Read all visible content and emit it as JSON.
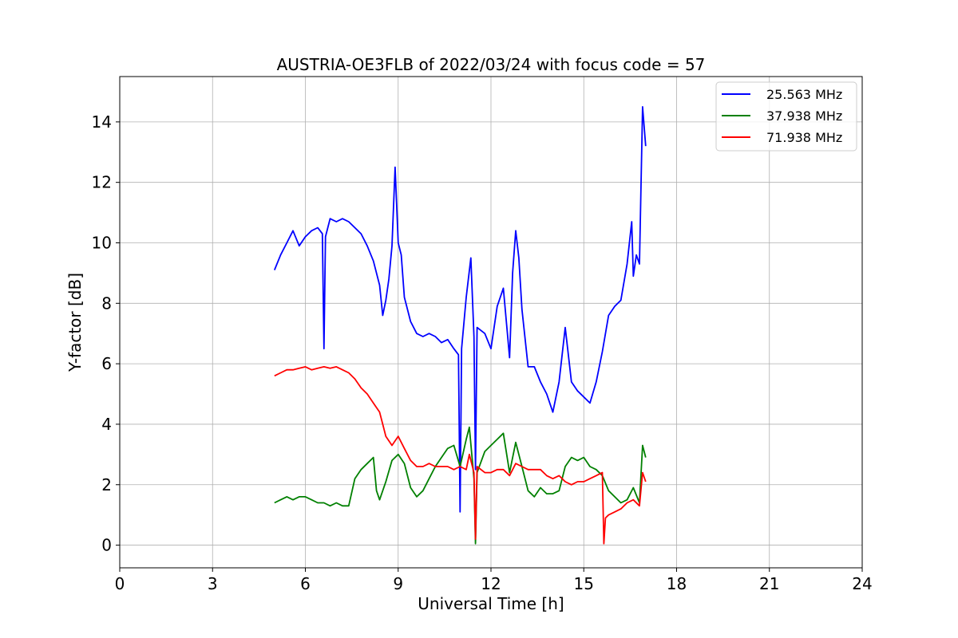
{
  "chart_data": {
    "type": "line",
    "title": "AUSTRIA-OE3FLB of 2022/03/24 with focus code = 57",
    "xlabel": "Universal Time [h]",
    "ylabel": "Y-factor [dB]",
    "xlim": [
      0,
      24
    ],
    "ylim": [
      -0.75,
      15.5
    ],
    "xticks": [
      "0",
      "3",
      "6",
      "9",
      "12",
      "15",
      "18",
      "21",
      "24"
    ],
    "yticks": [
      "0",
      "2",
      "4",
      "6",
      "8",
      "10",
      "12",
      "14"
    ],
    "grid": true,
    "legend_position": "top-right",
    "series": [
      {
        "name": "25.563 MHz",
        "color": "#0000ff",
        "x": [
          5.0,
          5.2,
          5.4,
          5.6,
          5.8,
          6.0,
          6.2,
          6.4,
          6.55,
          6.6,
          6.65,
          6.8,
          7.0,
          7.2,
          7.4,
          7.6,
          7.8,
          8.0,
          8.2,
          8.4,
          8.5,
          8.6,
          8.7,
          8.8,
          8.9,
          9.0,
          9.1,
          9.2,
          9.4,
          9.6,
          9.8,
          10.0,
          10.2,
          10.4,
          10.6,
          10.8,
          10.95,
          11.0,
          11.05,
          11.2,
          11.35,
          11.45,
          11.5,
          11.55,
          11.8,
          12.0,
          12.2,
          12.4,
          12.6,
          12.7,
          12.8,
          12.9,
          13.0,
          13.2,
          13.4,
          13.6,
          13.8,
          14.0,
          14.2,
          14.4,
          14.6,
          14.8,
          15.0,
          15.2,
          15.4,
          15.6,
          15.8,
          16.0,
          16.2,
          16.4,
          16.55,
          16.6,
          16.7,
          16.8,
          16.9,
          17.0
        ],
        "y": [
          9.1,
          9.6,
          10.0,
          10.4,
          9.9,
          10.2,
          10.4,
          10.5,
          10.3,
          6.5,
          10.2,
          10.8,
          10.7,
          10.8,
          10.7,
          10.5,
          10.3,
          9.9,
          9.4,
          8.6,
          7.6,
          8.1,
          8.8,
          9.9,
          12.5,
          10.0,
          9.6,
          8.2,
          7.4,
          7.0,
          6.9,
          7.0,
          6.9,
          6.7,
          6.8,
          6.5,
          6.3,
          1.1,
          6.5,
          8.2,
          9.5,
          6.9,
          2.5,
          7.2,
          7.0,
          6.5,
          7.9,
          8.5,
          6.2,
          9.0,
          10.4,
          9.5,
          7.8,
          5.9,
          5.9,
          5.4,
          5.0,
          4.4,
          5.4,
          7.2,
          5.4,
          5.1,
          4.9,
          4.7,
          5.4,
          6.4,
          7.6,
          7.9,
          8.1,
          9.3,
          10.7,
          8.9,
          9.6,
          9.3,
          14.5,
          13.2
        ]
      },
      {
        "name": "37.938 MHz",
        "color": "#008000",
        "x": [
          5.0,
          5.2,
          5.4,
          5.6,
          5.8,
          6.0,
          6.2,
          6.4,
          6.6,
          6.8,
          7.0,
          7.2,
          7.4,
          7.6,
          7.8,
          8.0,
          8.2,
          8.3,
          8.4,
          8.6,
          8.8,
          9.0,
          9.2,
          9.4,
          9.6,
          9.8,
          10.0,
          10.2,
          10.4,
          10.6,
          10.8,
          11.0,
          11.2,
          11.3,
          11.45,
          11.5,
          11.55,
          11.8,
          12.0,
          12.2,
          12.4,
          12.6,
          12.8,
          13.0,
          13.2,
          13.4,
          13.6,
          13.8,
          14.0,
          14.2,
          14.4,
          14.6,
          14.8,
          15.0,
          15.2,
          15.4,
          15.6,
          15.8,
          16.0,
          16.2,
          16.4,
          16.6,
          16.8,
          16.9,
          17.0
        ],
        "y": [
          1.4,
          1.5,
          1.6,
          1.5,
          1.6,
          1.6,
          1.5,
          1.4,
          1.4,
          1.3,
          1.4,
          1.3,
          1.3,
          2.2,
          2.5,
          2.7,
          2.9,
          1.8,
          1.5,
          2.1,
          2.8,
          3.0,
          2.7,
          1.9,
          1.6,
          1.8,
          2.2,
          2.6,
          2.9,
          3.2,
          3.3,
          2.6,
          3.5,
          3.9,
          2.2,
          0.05,
          2.4,
          3.1,
          3.3,
          3.5,
          3.7,
          2.4,
          3.4,
          2.6,
          1.8,
          1.6,
          1.9,
          1.7,
          1.7,
          1.8,
          2.6,
          2.9,
          2.8,
          2.9,
          2.6,
          2.5,
          2.3,
          1.8,
          1.6,
          1.4,
          1.5,
          1.9,
          1.4,
          3.3,
          2.9
        ]
      },
      {
        "name": "71.938 MHz",
        "color": "#ff0000",
        "x": [
          5.0,
          5.2,
          5.4,
          5.6,
          5.8,
          6.0,
          6.2,
          6.4,
          6.6,
          6.8,
          7.0,
          7.2,
          7.4,
          7.6,
          7.8,
          8.0,
          8.2,
          8.4,
          8.5,
          8.6,
          8.8,
          9.0,
          9.2,
          9.4,
          9.6,
          9.8,
          10.0,
          10.2,
          10.4,
          10.6,
          10.8,
          11.0,
          11.2,
          11.3,
          11.45,
          11.5,
          11.55,
          11.8,
          12.0,
          12.2,
          12.4,
          12.6,
          12.8,
          13.0,
          13.2,
          13.4,
          13.6,
          13.8,
          14.0,
          14.2,
          14.4,
          14.6,
          14.8,
          15.0,
          15.2,
          15.4,
          15.6,
          15.65,
          15.7,
          15.8,
          16.0,
          16.2,
          16.4,
          16.6,
          16.8,
          16.9,
          17.0
        ],
        "y": [
          5.6,
          5.7,
          5.8,
          5.8,
          5.85,
          5.9,
          5.8,
          5.85,
          5.9,
          5.85,
          5.9,
          5.8,
          5.7,
          5.5,
          5.2,
          5.0,
          4.7,
          4.4,
          4.0,
          3.6,
          3.3,
          3.6,
          3.2,
          2.8,
          2.6,
          2.6,
          2.7,
          2.6,
          2.6,
          2.6,
          2.5,
          2.6,
          2.5,
          3.0,
          2.4,
          0.2,
          2.6,
          2.4,
          2.4,
          2.5,
          2.5,
          2.3,
          2.7,
          2.6,
          2.5,
          2.5,
          2.5,
          2.3,
          2.2,
          2.3,
          2.1,
          2.0,
          2.1,
          2.1,
          2.2,
          2.3,
          2.4,
          0.05,
          0.9,
          1.0,
          1.1,
          1.2,
          1.4,
          1.5,
          1.3,
          2.4,
          2.1
        ]
      }
    ]
  }
}
